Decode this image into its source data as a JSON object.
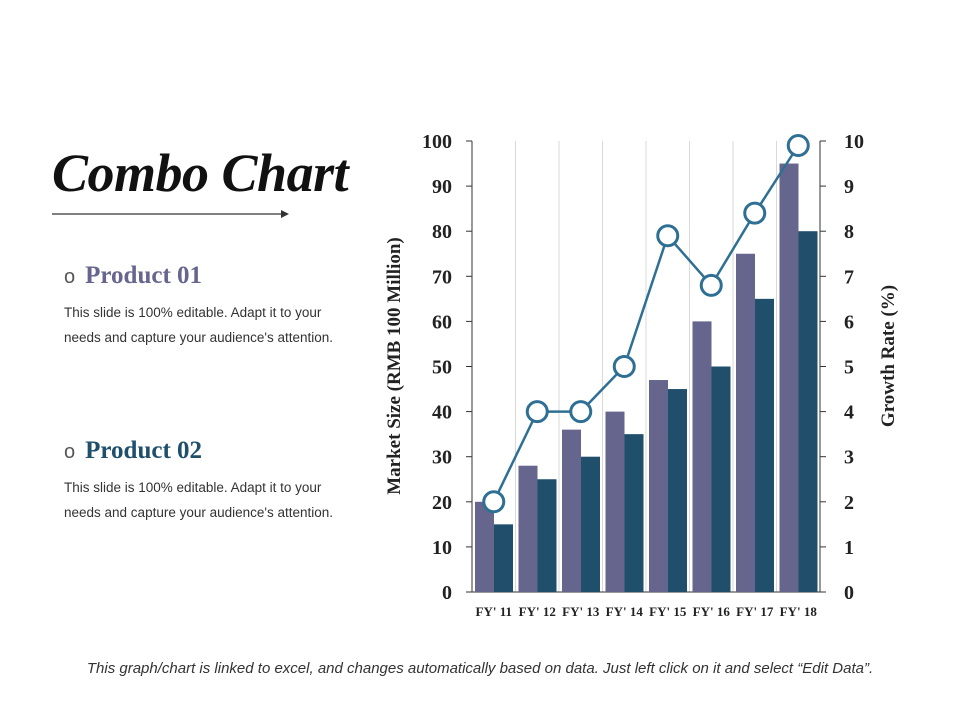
{
  "title": "Combo Chart",
  "products": [
    {
      "bullet": "o",
      "title": "Product 01",
      "description": "This slide is 100% editable. Adapt it to your needs and capture your audience's attention."
    },
    {
      "bullet": "o",
      "title": "Product 02",
      "description": "This slide is 100% editable. Adapt it to your needs and capture your audience's attention."
    }
  ],
  "colors": {
    "product1": "#65658e",
    "product2": "#1f4f6b",
    "line": "#2e6f93"
  },
  "chart_data": {
    "type": "bar",
    "combo_with": "line",
    "categories": [
      "FY' 11",
      "FY' 12",
      "FY' 13",
      "FY' 14",
      "FY' 15",
      "FY' 16",
      "FY' 17",
      "FY' 18"
    ],
    "series": [
      {
        "name": "Product 01",
        "type": "bar",
        "axis": "left",
        "values": [
          20,
          28,
          36,
          40,
          47,
          60,
          75,
          95
        ]
      },
      {
        "name": "Product 02",
        "type": "bar",
        "axis": "left",
        "values": [
          15,
          25,
          30,
          35,
          45,
          50,
          65,
          80
        ]
      },
      {
        "name": "Growth Rate",
        "type": "line",
        "axis": "right",
        "values": [
          2,
          4,
          4,
          5,
          7.9,
          6.8,
          8.4,
          9.9
        ]
      }
    ],
    "ylabel": "Market Size (RMB 100 Million)",
    "y2label": "Growth Rate (%)",
    "ylim": [
      0,
      100
    ],
    "y2lim": [
      0,
      10
    ],
    "yticks": [
      0,
      10,
      20,
      30,
      40,
      50,
      60,
      70,
      80,
      90,
      100
    ],
    "y2ticks": [
      0,
      1,
      2,
      3,
      4,
      5,
      6,
      7,
      8,
      9,
      10
    ],
    "grid": "vertical"
  },
  "footnote": "This graph/chart is linked to excel, and changes automatically based on data. Just left click on it and select “Edit Data”."
}
